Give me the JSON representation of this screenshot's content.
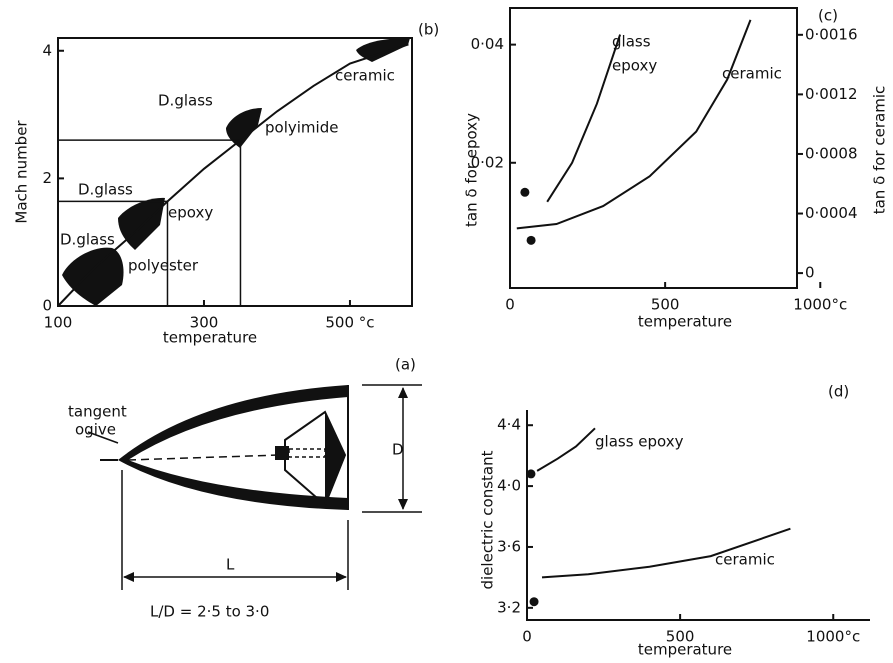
{
  "chart_data": [
    {
      "type": "line",
      "panel_label": "(b)",
      "x_label": "temperature",
      "y_label": "Mach number",
      "xlim": [
        100,
        585
      ],
      "ylim": [
        0,
        4.2
      ],
      "xticks": [
        100,
        300,
        {
          "value": 500,
          "label": "500 °c"
        }
      ],
      "yticks": [
        0,
        2,
        4
      ],
      "series": [
        {
          "color": "#111111",
          "x": [
            100,
            150,
            200,
            250,
            300,
            350,
            400,
            450,
            500,
            580
          ],
          "values": [
            0,
            0.6,
            1.1,
            1.64,
            2.15,
            2.6,
            3.05,
            3.45,
            3.8,
            4.1
          ]
        }
      ],
      "guides": [
        {
          "x": 250,
          "y": 1.64
        },
        {
          "x": 350,
          "y": 2.6
        }
      ],
      "annotations": [
        "D.glass",
        "polyester",
        "D.glass",
        "epoxy",
        "D.glass",
        "polyimide",
        "ceramic"
      ]
    },
    {
      "type": "line",
      "panel_label": "(c)",
      "x_label": "temperature",
      "y_label": "tan δ for epoxy",
      "y2_label": "tan δ for ceramic",
      "xlim": [
        0,
        925
      ],
      "ylim": [
        -0.0012,
        0.0462
      ],
      "y2lim": [
        -0.0001,
        0.00178
      ],
      "xticks": [
        0,
        500,
        {
          "value": 1000,
          "label": "1000°c"
        }
      ],
      "yticks": [
        {
          "value": 0.02,
          "label": "0·02"
        },
        {
          "value": 0.04,
          "label": "0·04"
        }
      ],
      "y2ticks": [
        0,
        {
          "value": 0.0004,
          "label": "0·0004"
        },
        {
          "value": 0.0008,
          "label": "0·0008"
        },
        {
          "value": 0.0012,
          "label": "0·0012"
        },
        {
          "value": 0.0016,
          "label": "0·0016"
        }
      ],
      "series": [
        {
          "color": "#111111",
          "x": [
            120,
            200,
            280,
            355
          ],
          "values": [
            0.0134,
            0.02,
            0.03,
            0.0417
          ]
        },
        {
          "color": "#111111",
          "axis": "y2",
          "x": [
            22,
            150,
            300,
            450,
            600,
            700,
            775
          ],
          "values": [
            0.0003,
            0.00033,
            0.00045,
            0.00065,
            0.00095,
            0.0013,
            0.0017
          ]
        }
      ],
      "points": [
        {
          "x": 48,
          "y": 0.015
        },
        {
          "x": 68,
          "y": 0.00022,
          "axis": "y2"
        }
      ],
      "annotations": [
        "glass",
        "epoxy",
        "ceramic"
      ]
    },
    {
      "type": "line",
      "panel_label": "(d)",
      "x_label": "temperature",
      "y_label": "dielectric constant",
      "xlim": [
        0,
        1120
      ],
      "ylim": [
        3.12,
        4.5
      ],
      "xticks": [
        0,
        500,
        {
          "value": 1000,
          "label": "1000°c"
        }
      ],
      "yticks": [
        {
          "value": 3.2,
          "label": "3·2"
        },
        {
          "value": 3.6,
          "label": "3·6"
        },
        {
          "value": 4.0,
          "label": "4·0"
        },
        {
          "value": 4.4,
          "label": "4·4"
        }
      ],
      "series": [
        {
          "color": "#111111",
          "x": [
            33,
            100,
            160,
            222
          ],
          "values": [
            4.1,
            4.18,
            4.26,
            4.38
          ]
        },
        {
          "color": "#111111",
          "x": [
            49,
            200,
            400,
            600,
            860
          ],
          "values": [
            3.4,
            3.42,
            3.47,
            3.54,
            3.72
          ]
        }
      ],
      "points": [
        {
          "x": 13,
          "y": 4.08
        },
        {
          "x": 23,
          "y": 3.24
        }
      ],
      "annotations": [
        "glass epoxy",
        "ceramic"
      ]
    }
  ],
  "diagram": {
    "panel_label": "(a)",
    "tangent": "tangent",
    "ogive": "ogive",
    "d": "D",
    "l": "L",
    "ratio": "L/D = 2·5 to 3·0"
  }
}
